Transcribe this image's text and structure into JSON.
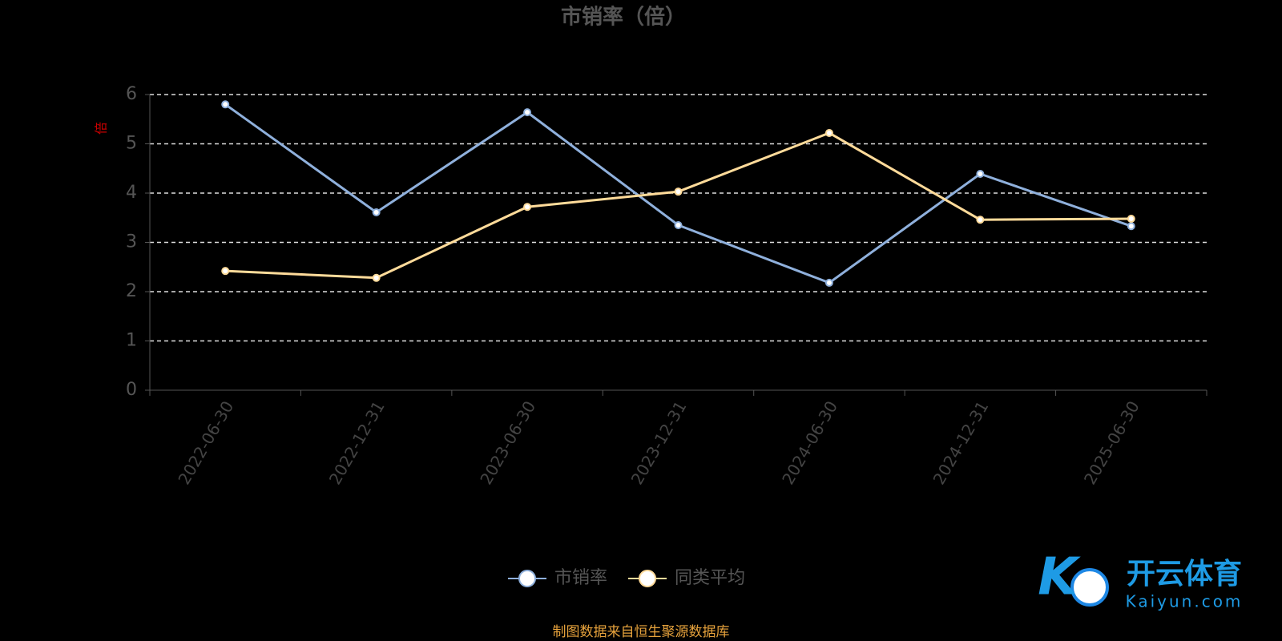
{
  "chart_data": {
    "type": "line",
    "title": "市销率（倍）",
    "y_label": "倍",
    "categories": [
      "2022-06-30",
      "2022-12-31",
      "2023-06-30",
      "2023-12-31",
      "2024-06-30",
      "2024-12-31",
      "2025-06-30"
    ],
    "series": [
      {
        "name": "市销率",
        "color": "#8fb0dc",
        "values": [
          5.8,
          3.61,
          5.64,
          3.35,
          2.18,
          4.39,
          3.33
        ]
      },
      {
        "name": "同类平均",
        "color": "#ffdb9a",
        "values": [
          2.42,
          2.28,
          3.72,
          4.03,
          5.22,
          3.46,
          3.48
        ]
      }
    ],
    "ylim": [
      0,
      6
    ],
    "yticks": [
      0,
      1,
      2,
      3,
      4,
      5,
      6
    ],
    "grid": true,
    "legend": "bottom",
    "source": "制图数据来自恒生聚源数据库"
  },
  "watermark": {
    "brand": "开云体育",
    "site": "Kaiyun.com"
  }
}
